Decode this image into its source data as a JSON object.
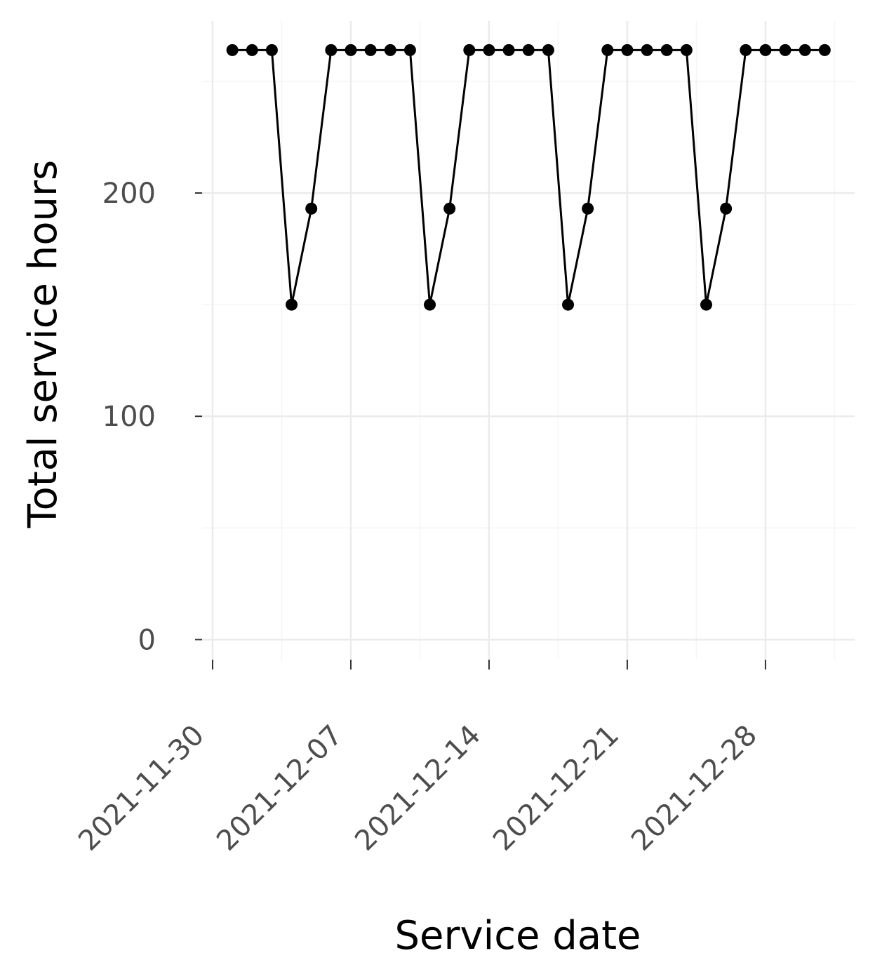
{
  "chart_data": {
    "type": "line",
    "xlabel": "Service date",
    "ylabel": "Total service hours",
    "x_ticks": [
      "2021-11-30",
      "2021-12-07",
      "2021-12-14",
      "2021-12-21",
      "2021-12-28"
    ],
    "y_ticks": [
      0,
      100,
      200
    ],
    "xlim": [
      "2021-11-30",
      "2022-01-01"
    ],
    "ylim": [
      -9,
      277
    ],
    "grid": true,
    "legend": "none",
    "series": [
      {
        "x": [
          "2021-12-01",
          "2021-12-02",
          "2021-12-03",
          "2021-12-04",
          "2021-12-05",
          "2021-12-06",
          "2021-12-07",
          "2021-12-08",
          "2021-12-09",
          "2021-12-10",
          "2021-12-11",
          "2021-12-12",
          "2021-12-13",
          "2021-12-14",
          "2021-12-15",
          "2021-12-16",
          "2021-12-17",
          "2021-12-18",
          "2021-12-19",
          "2021-12-20",
          "2021-12-21",
          "2021-12-22",
          "2021-12-23",
          "2021-12-24",
          "2021-12-25",
          "2021-12-26",
          "2021-12-27",
          "2021-12-28",
          "2021-12-29",
          "2021-12-30",
          "2021-12-31"
        ],
        "values": [
          264,
          264,
          264,
          150,
          193,
          264,
          264,
          264,
          264,
          264,
          150,
          193,
          264,
          264,
          264,
          264,
          264,
          150,
          193,
          264,
          264,
          264,
          264,
          264,
          150,
          193,
          264,
          264,
          264,
          264,
          264
        ]
      }
    ]
  },
  "colors": {
    "line": "#000000",
    "grid_major": "#ebebeb",
    "grid_minor": "#f5f5f5",
    "tick_text": "#4d4d4d"
  }
}
